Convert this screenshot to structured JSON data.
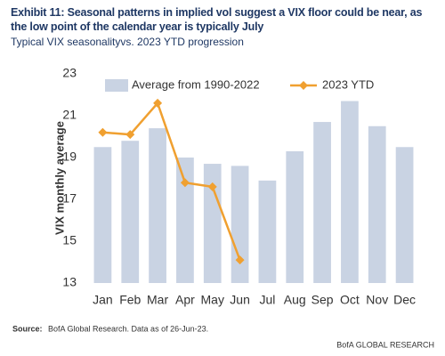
{
  "chart_data": {
    "type": "bar",
    "title": "Exhibit 11: Seasonal patterns in implied vol suggest a VIX floor could be near, as the low point of the calendar year is typically July",
    "subtitle": "Typical VIX seasonalityvs. 2023 YTD progression",
    "y_label": "VIX monthly average",
    "categories": [
      "Jan",
      "Feb",
      "Mar",
      "Apr",
      "May",
      "Jun",
      "Jul",
      "Aug",
      "Sep",
      "Oct",
      "Nov",
      "Dec"
    ],
    "series": [
      {
        "name": "Average from 1990-2022",
        "type": "bar",
        "color": "#c9d3e3",
        "values": [
          19.5,
          19.8,
          20.4,
          19.0,
          18.7,
          18.6,
          17.9,
          19.3,
          20.7,
          21.7,
          20.5,
          19.5
        ]
      },
      {
        "name": "2023 YTD",
        "type": "line",
        "color": "#f0a030",
        "values": [
          20.2,
          20.1,
          21.6,
          17.8,
          17.6,
          14.1,
          null,
          null,
          null,
          null,
          null,
          null
        ]
      }
    ],
    "ylim": [
      13,
      23
    ],
    "yticks": [
      13,
      15,
      17,
      19,
      21,
      23
    ],
    "grid": false,
    "legend": "top",
    "source_label": "Source:",
    "source_text": "BofA Global Research.  Data as of 26-Jun-23.",
    "footer": "BofA GLOBAL RESEARCH"
  }
}
